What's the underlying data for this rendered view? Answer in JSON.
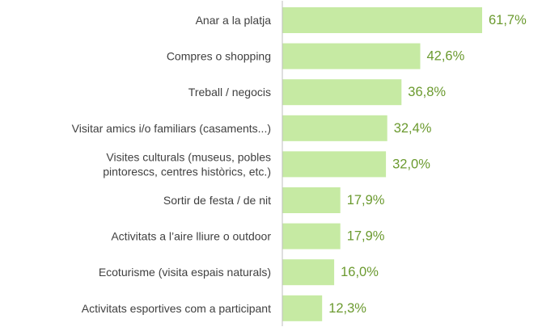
{
  "colors": {
    "bar": "#c6eaa3",
    "value_label": "#6b9a2f",
    "category_label": "#404040",
    "axis": "#bfbfbf"
  },
  "chart_data": {
    "type": "bar",
    "orientation": "horizontal",
    "categories": [
      [
        "Anar a la platja"
      ],
      [
        "Compres o shopping"
      ],
      [
        "Treball / negocis"
      ],
      [
        "Visitar amics i/o familiars (casaments...)"
      ],
      [
        "Visites culturals (museus, pobles",
        "pintorescs, centres històrics, etc.)"
      ],
      [
        "Sortir de festa / de nit"
      ],
      [
        "Activitats a l’aire lliure o outdoor"
      ],
      [
        "Ecoturisme (visita espais naturals)"
      ],
      [
        "Activitats esportives com a participant"
      ]
    ],
    "values": [
      61.7,
      42.6,
      36.8,
      32.4,
      32.0,
      17.9,
      17.9,
      16.0,
      12.3
    ],
    "value_labels": [
      "61,7%",
      "42,6%",
      "36,8%",
      "32,4%",
      "32,0%",
      "17,9%",
      "17,9%",
      "16,0%",
      "12,3%"
    ],
    "xlim": [
      0,
      61.7
    ],
    "grid": false,
    "legend": "none"
  }
}
